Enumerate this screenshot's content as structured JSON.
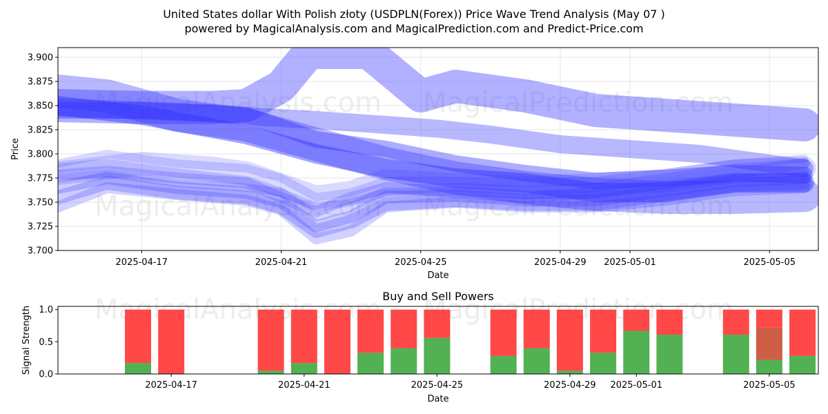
{
  "title_line1": "United States dollar With Polish złoty (USDPLN(Forex)) Price Wave Trend Analysis (May 07 )",
  "title_line2": "powered by MagicalAnalysis.com and MagicalPrediction.com and Predict-Price.com",
  "watermarks": [
    "MagicalAnalysis.com",
    "MagicalPrediction.com"
  ],
  "colors": {
    "wave": "#3333ff",
    "buy": "#2ca02c",
    "sell": "#ff2020",
    "mixed": "#c43a1e"
  },
  "chart_data": [
    {
      "type": "line",
      "ylabel": "Price",
      "xlabel": "Date",
      "ylim": [
        3.7,
        3.91
      ],
      "xlim_days": [
        -5.4,
        16.4
      ],
      "y_ticks": [
        3.7,
        3.725,
        3.75,
        3.775,
        3.8,
        3.825,
        3.85,
        3.875,
        3.9
      ],
      "y_tick_labels": [
        "3.700",
        "3.725",
        "3.750",
        "3.775",
        "3.800",
        "3.825",
        "3.850",
        "3.875",
        "3.900"
      ],
      "x_ticks": [
        {
          "date": "2025-04-17",
          "d": -3
        },
        {
          "date": "2025-04-21",
          "d": 1
        },
        {
          "date": "2025-04-25",
          "d": 5
        },
        {
          "date": "2025-04-29",
          "d": 9
        },
        {
          "date": "2025-05-01",
          "d": 11
        },
        {
          "date": "2025-05-05",
          "d": 15
        }
      ],
      "grid": true,
      "series": [
        {
          "values": [
            [
              -5.4,
              3.848
            ],
            [
              -3,
              3.845
            ],
            [
              -1,
              3.842
            ],
            [
              0.5,
              3.838
            ],
            [
              2,
              3.835
            ],
            [
              4,
              3.83
            ],
            [
              5.5,
              3.826
            ],
            [
              7,
              3.82
            ],
            [
              9,
              3.81
            ],
            [
              11,
              3.805
            ],
            [
              13,
              3.8
            ],
            [
              15,
              3.79
            ],
            [
              16,
              3.785
            ]
          ],
          "width": 26,
          "opacity": 0.35
        },
        {
          "values": [
            [
              -5.4,
              3.865
            ],
            [
              -4,
              3.86
            ],
            [
              -2,
              3.84
            ],
            [
              0,
              3.83
            ],
            [
              2,
              3.81
            ],
            [
              4,
              3.79
            ],
            [
              6,
              3.775
            ],
            [
              8,
              3.765
            ],
            [
              10,
              3.758
            ],
            [
              12,
              3.755
            ],
            [
              14,
              3.755
            ],
            [
              16,
              3.757
            ]
          ],
          "width": 48,
          "opacity": 0.35
        },
        {
          "values": [
            [
              -5.4,
              3.85
            ],
            [
              -3,
              3.84
            ],
            [
              0,
              3.82
            ],
            [
              2,
              3.8
            ],
            [
              4,
              3.785
            ],
            [
              6,
              3.775
            ],
            [
              8,
              3.77
            ],
            [
              10,
              3.76
            ],
            [
              12,
              3.76
            ],
            [
              14,
              3.77
            ],
            [
              16,
              3.77
            ]
          ],
          "width": 28,
          "opacity": 0.45
        },
        {
          "values": [
            [
              -5.4,
              3.845
            ],
            [
              -3,
              3.845
            ],
            [
              -1,
              3.842
            ],
            [
              0,
              3.84
            ],
            [
              2,
              3.815
            ],
            [
              4,
              3.805
            ],
            [
              6,
              3.79
            ],
            [
              8,
              3.78
            ],
            [
              10,
              3.772
            ],
            [
              12,
              3.775
            ],
            [
              14,
              3.78
            ],
            [
              16,
              3.778
            ]
          ],
          "width": 24,
          "opacity": 0.4
        },
        {
          "values": [
            [
              -5.4,
              3.85
            ],
            [
              -3,
              3.848
            ],
            [
              -1,
              3.848
            ],
            [
              0,
              3.85
            ],
            [
              1,
              3.87
            ],
            [
              1.8,
              3.905
            ],
            [
              3.5,
              3.905
            ],
            [
              5,
              3.86
            ],
            [
              6,
              3.87
            ],
            [
              8,
              3.86
            ],
            [
              10,
              3.845
            ],
            [
              12,
              3.84
            ],
            [
              14,
              3.835
            ],
            [
              16,
              3.83
            ]
          ],
          "width": 48,
          "opacity": 0.38
        },
        {
          "values": [
            [
              -5.4,
              3.778
            ],
            [
              -4,
              3.782
            ],
            [
              -2,
              3.775
            ],
            [
              0,
              3.77
            ],
            [
              1,
              3.755
            ],
            [
              2,
              3.74
            ],
            [
              3,
              3.755
            ],
            [
              4,
              3.765
            ],
            [
              6,
              3.76
            ],
            [
              8,
              3.755
            ],
            [
              10,
              3.76
            ],
            [
              12,
              3.77
            ],
            [
              14,
              3.78
            ],
            [
              16,
              3.79
            ]
          ],
          "width": 16,
          "opacity": 0.22
        },
        {
          "values": [
            [
              -5.4,
              3.785
            ],
            [
              -4,
              3.79
            ],
            [
              -2,
              3.78
            ],
            [
              0,
              3.772
            ],
            [
              1,
              3.76
            ],
            [
              2,
              3.735
            ],
            [
              3,
              3.745
            ],
            [
              4,
              3.762
            ],
            [
              6,
              3.765
            ],
            [
              8,
              3.762
            ],
            [
              10,
              3.765
            ],
            [
              12,
              3.775
            ],
            [
              14,
              3.785
            ],
            [
              16,
              3.79
            ]
          ],
          "width": 14,
          "opacity": 0.2
        },
        {
          "values": [
            [
              -5.4,
              3.765
            ],
            [
              -4,
              3.775
            ],
            [
              -2,
              3.765
            ],
            [
              0,
              3.76
            ],
            [
              1,
              3.75
            ],
            [
              2,
              3.725
            ],
            [
              3,
              3.735
            ],
            [
              4,
              3.755
            ],
            [
              6,
              3.757
            ],
            [
              8,
              3.752
            ],
            [
              10,
              3.752
            ],
            [
              12,
              3.762
            ],
            [
              14,
              3.772
            ],
            [
              16,
              3.775
            ]
          ],
          "width": 18,
          "opacity": 0.25
        },
        {
          "values": [
            [
              -5.4,
              3.755
            ],
            [
              -4,
              3.77
            ],
            [
              -2,
              3.76
            ],
            [
              0,
              3.755
            ],
            [
              1,
              3.745
            ],
            [
              2,
              3.72
            ],
            [
              3,
              3.73
            ],
            [
              4,
              3.748
            ],
            [
              6,
              3.752
            ],
            [
              8,
              3.748
            ],
            [
              10,
              3.748
            ],
            [
              12,
              3.758
            ],
            [
              14,
              3.768
            ],
            [
              16,
              3.77
            ]
          ],
          "width": 20,
          "opacity": 0.25
        },
        {
          "values": [
            [
              -5.4,
              3.775
            ],
            [
              -4,
              3.78
            ],
            [
              -2,
              3.77
            ],
            [
              0,
              3.765
            ],
            [
              1,
              3.76
            ],
            [
              2,
              3.745
            ],
            [
              3,
              3.75
            ],
            [
              4,
              3.76
            ],
            [
              6,
              3.762
            ],
            [
              8,
              3.758
            ],
            [
              10,
              3.758
            ],
            [
              12,
              3.768
            ],
            [
              14,
              3.776
            ],
            [
              16,
              3.78
            ]
          ],
          "width": 12,
          "opacity": 0.2
        },
        {
          "values": [
            [
              -5.4,
              3.79
            ],
            [
              -4,
              3.8
            ],
            [
              -2,
              3.79
            ],
            [
              0,
              3.785
            ],
            [
              1,
              3.775
            ],
            [
              2,
              3.755
            ],
            [
              3,
              3.76
            ],
            [
              4,
              3.772
            ],
            [
              6,
              3.772
            ],
            [
              8,
              3.77
            ],
            [
              10,
              3.772
            ],
            [
              12,
              3.78
            ],
            [
              14,
              3.79
            ],
            [
              16,
              3.795
            ]
          ],
          "width": 12,
          "opacity": 0.18
        },
        {
          "values": [
            [
              -5.4,
              3.745
            ],
            [
              -4,
              3.765
            ],
            [
              -2,
              3.758
            ],
            [
              0,
              3.752
            ],
            [
              1,
              3.742
            ],
            [
              2,
              3.712
            ],
            [
              3,
              3.72
            ],
            [
              4,
              3.745
            ],
            [
              6,
              3.75
            ],
            [
              8,
              3.745
            ],
            [
              10,
              3.745
            ],
            [
              12,
              3.752
            ],
            [
              14,
              3.762
            ],
            [
              16,
              3.765
            ]
          ],
          "width": 16,
          "opacity": 0.22
        },
        {
          "values": [
            [
              -5.4,
              3.78
            ],
            [
              -3,
              3.79
            ],
            [
              -1,
              3.785
            ],
            [
              0,
              3.78
            ],
            [
              2,
              3.755
            ],
            [
              3,
              3.76
            ],
            [
              4,
              3.772
            ],
            [
              6,
              3.768
            ],
            [
              8,
              3.765
            ],
            [
              10,
              3.768
            ],
            [
              12,
              3.772
            ],
            [
              14,
              3.782
            ],
            [
              16,
              3.785
            ]
          ],
          "width": 34,
          "opacity": 0.18
        }
      ]
    },
    {
      "type": "bar",
      "title": "Buy and Sell Powers",
      "ylabel": "Signal Strength",
      "xlabel": "Date",
      "ylim": [
        0,
        1.05
      ],
      "y_ticks": [
        0,
        0.5,
        1
      ],
      "y_tick_labels": [
        "0.0",
        "0.5",
        "1.0"
      ],
      "x_ticks": [
        {
          "date": "2025-04-17",
          "d": -3
        },
        {
          "date": "2025-04-21",
          "d": 1
        },
        {
          "date": "2025-04-25",
          "d": 5
        },
        {
          "date": "2025-04-29",
          "d": 9
        },
        {
          "date": "2025-05-01",
          "d": 11
        },
        {
          "date": "2025-05-05",
          "d": 15
        }
      ],
      "bars": [
        {
          "d": -4,
          "buy": 0.17,
          "sell": 0.83
        },
        {
          "d": -3,
          "buy": 0.0,
          "sell": 1.0
        },
        {
          "d": 0,
          "buy": 0.05,
          "sell": 0.95
        },
        {
          "d": 1,
          "buy": 0.17,
          "sell": 0.83
        },
        {
          "d": 2,
          "buy": 0.0,
          "sell": 1.0
        },
        {
          "d": 3,
          "buy": 0.33,
          "sell": 0.67
        },
        {
          "d": 4,
          "buy": 0.4,
          "sell": 0.6
        },
        {
          "d": 5,
          "buy": 0.56,
          "sell": 0.44
        },
        {
          "d": 7,
          "buy": 0.28,
          "sell": 0.72
        },
        {
          "d": 8,
          "buy": 0.4,
          "sell": 0.6
        },
        {
          "d": 9,
          "buy": 0.05,
          "sell": 0.95
        },
        {
          "d": 10,
          "buy": 0.33,
          "sell": 0.67
        },
        {
          "d": 11,
          "buy": 0.67,
          "sell": 0.33
        },
        {
          "d": 12,
          "buy": 0.61,
          "sell": 0.39
        },
        {
          "d": 14,
          "buy": 0.61,
          "sell": 0.39
        },
        {
          "d": 15,
          "buy": 0.22,
          "mixed": 0.5,
          "sell": 0.28
        },
        {
          "d": 16,
          "buy": 0.28,
          "sell": 0.72
        }
      ]
    }
  ]
}
